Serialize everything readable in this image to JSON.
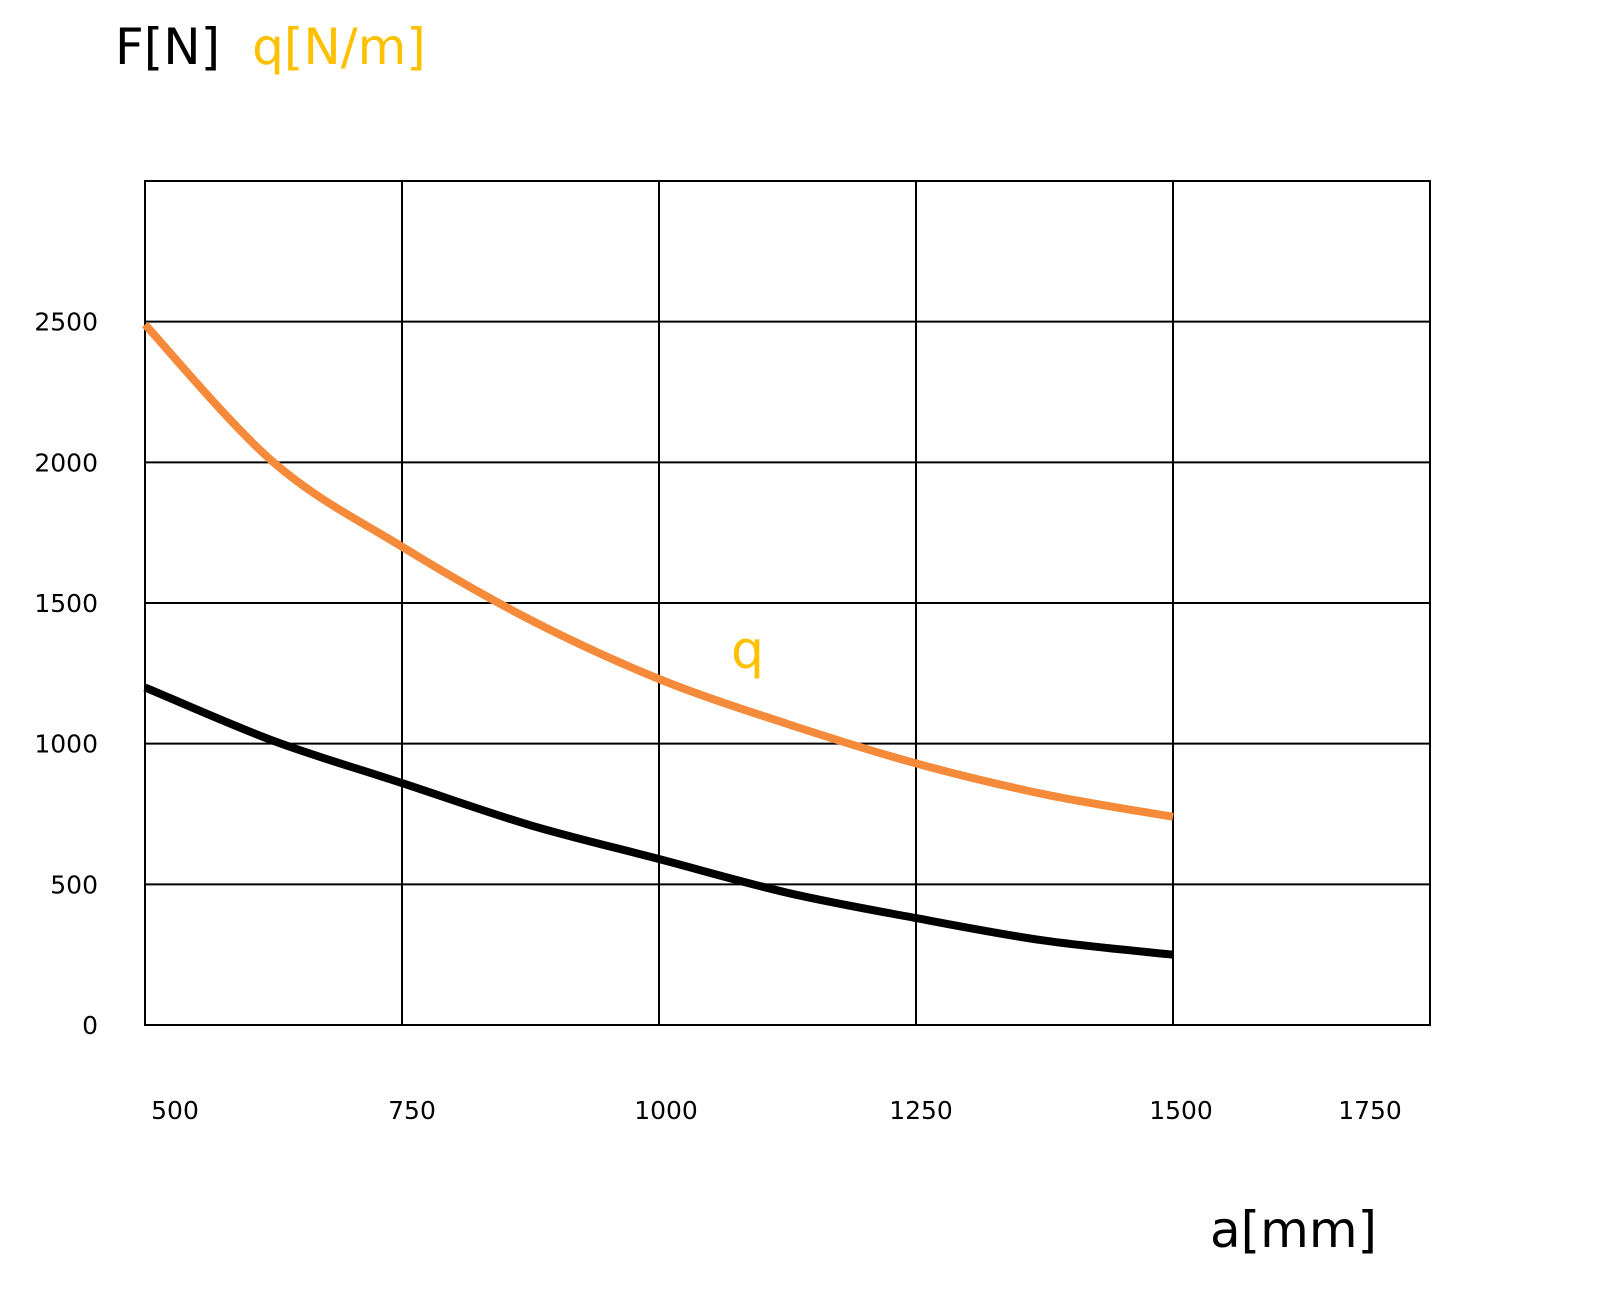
{
  "chart_data": {
    "type": "line",
    "title": {
      "part1": "F[N]",
      "part2": "q[N/m]",
      "part1_color": "#000000",
      "part2_color": "#FFC000"
    },
    "xlabel": "a[mm]",
    "ylabel": "F[N] q[N/m]",
    "xlim": [
      500,
      1750
    ],
    "ylim": [
      0,
      3000
    ],
    "x_ticks": [
      500,
      750,
      1000,
      1250,
      1500,
      1750
    ],
    "y_ticks": [
      0,
      500,
      1000,
      1500,
      2000,
      2500
    ],
    "x_tick_labels": [
      "500",
      "750",
      "1000",
      "1250",
      "1500",
      "1750"
    ],
    "y_tick_labels": [
      "0",
      "500",
      "1000",
      "1500",
      "2000",
      "2500"
    ],
    "grid": true,
    "series": [
      {
        "name": "q",
        "label": "q",
        "color": "#F58A3A",
        "label_color": "#FFC000",
        "label_at": [
          1070,
          1270
        ],
        "x": [
          500,
          625,
          750,
          875,
          1000,
          1125,
          1250,
          1375,
          1500
        ],
        "y": [
          2490,
          2000,
          1700,
          1440,
          1230,
          1070,
          930,
          820,
          740
        ]
      },
      {
        "name": "F",
        "color": "#000000",
        "x": [
          500,
          625,
          750,
          875,
          1000,
          1125,
          1250,
          1375,
          1500
        ],
        "y": [
          1200,
          1010,
          860,
          710,
          590,
          470,
          380,
          300,
          250
        ]
      }
    ]
  }
}
